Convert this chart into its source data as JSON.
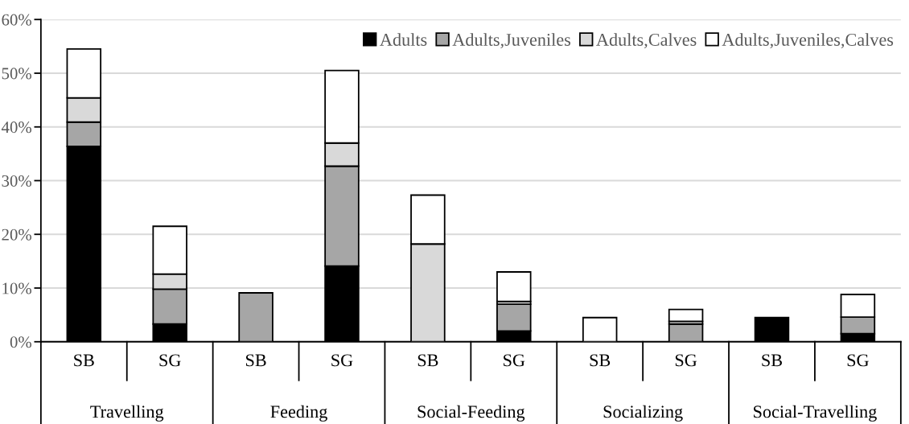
{
  "chart_data": {
    "type": "bar",
    "stacked": true,
    "categories": [
      "SB",
      "SG",
      "SB",
      "SG",
      "SB",
      "SG",
      "SB",
      "SG",
      "SB",
      "SG"
    ],
    "annotations": [
      "Travelling",
      "Feeding",
      "Social-Feeding",
      "Socializing",
      "Social-Travelling"
    ],
    "series": [
      {
        "name": "Adults",
        "color": "#000000",
        "values": [
          36.4,
          3.3,
          0,
          14.1,
          0,
          2.0,
          0,
          0,
          4.5,
          1.5
        ]
      },
      {
        "name": "Adults,Juveniles",
        "color": "#a6a6a6",
        "values": [
          4.5,
          6.5,
          9.1,
          18.6,
          0,
          5.0,
          0,
          3.3,
          0,
          3.1
        ]
      },
      {
        "name": "Adults,Calves",
        "color": "#d9d9d9",
        "values": [
          4.5,
          2.8,
          0,
          4.3,
          18.2,
          0.5,
          0,
          0.5,
          0,
          0
        ]
      },
      {
        "name": "Adults,Juveniles,Calves",
        "color": "#ffffff",
        "values": [
          9.1,
          8.9,
          0,
          13.5,
          9.1,
          5.5,
          4.5,
          2.2,
          0,
          4.2
        ]
      }
    ],
    "ylim": [
      0,
      60
    ],
    "yticks": [
      {
        "value": 0,
        "label": "0%"
      },
      {
        "value": 10,
        "label": "10%"
      },
      {
        "value": 20,
        "label": "20%"
      },
      {
        "value": 30,
        "label": "30%"
      },
      {
        "value": 40,
        "label": "40%"
      },
      {
        "value": 50,
        "label": "50%"
      },
      {
        "value": 60,
        "label": "60%"
      }
    ],
    "grid": "y",
    "legend": "top right"
  }
}
